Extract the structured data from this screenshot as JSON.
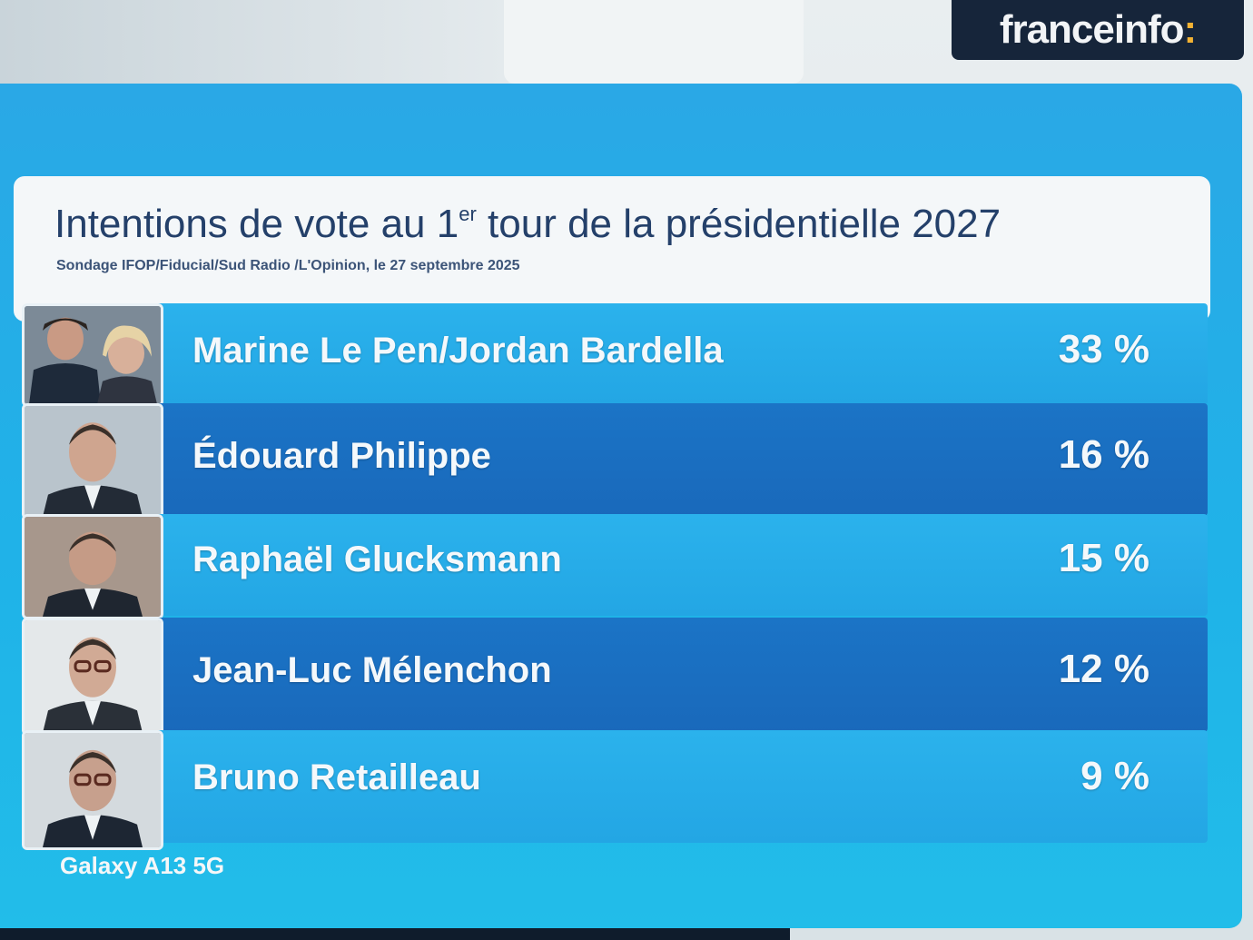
{
  "logo": {
    "text": "franceinfo",
    "colon": ":"
  },
  "poll": {
    "title_main": "Intentions de vote au 1",
    "title_sup": "er",
    "title_rest": " tour de la présidentielle 2027",
    "subtitle": "Sondage IFOP/Fiducial/Sud Radio /L'Opinion, le 27 septembre 2025"
  },
  "candidates": [
    {
      "name": "Marine Le Pen/Jordan Bardella",
      "percent_label": "33 %",
      "value": 33,
      "shade": "light"
    },
    {
      "name": "Édouard Philippe",
      "percent_label": "16 %",
      "value": 16,
      "shade": "dark"
    },
    {
      "name": "Raphaël Glucksmann",
      "percent_label": "15 %",
      "value": 15,
      "shade": "light"
    },
    {
      "name": "Jean-Luc Mélenchon",
      "percent_label": "12 %",
      "value": 12,
      "shade": "dark"
    },
    {
      "name": "Bruno Retailleau",
      "percent_label": "9 %",
      "value": 9,
      "shade": "light"
    }
  ],
  "watermark": "Galaxy A13 5G",
  "colors": {
    "frame": "#22b0e8",
    "row_light": "#27acea",
    "row_dark": "#1a6fc1",
    "title": "#24406a",
    "logo_bg": "#16253a",
    "logo_colon": "#f2b233"
  }
}
